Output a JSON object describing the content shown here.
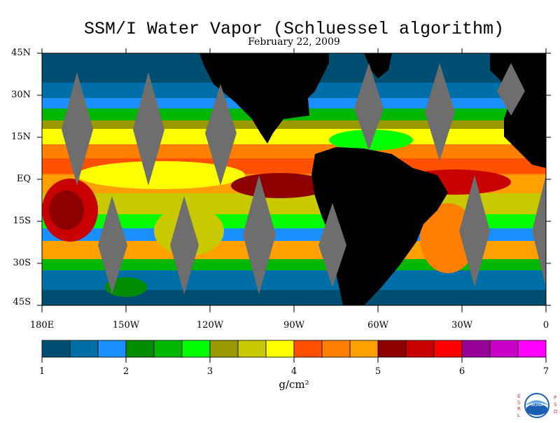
{
  "title": "SSM/I Water Vapor (Schluessel algorithm)",
  "date": "February 22, 2009",
  "lat_labels": [
    "45N",
    "30N",
    "15N",
    "EQ",
    "15S",
    "30S",
    "45S"
  ],
  "lon_labels": [
    "180E",
    "150W",
    "120W",
    "90W",
    "60W",
    "30W",
    "0"
  ],
  "colorbar": {
    "unit": "g/cm²",
    "ticks": [
      "1",
      "2",
      "3",
      "4",
      "5",
      "6",
      "7"
    ],
    "min": 1,
    "max": 7,
    "colors": [
      "#004f73",
      "#006fa8",
      "#1a8fff",
      "#008c00",
      "#00b800",
      "#00ff00",
      "#999900",
      "#c9c900",
      "#ffff00",
      "#ff5000",
      "#ff7f00",
      "#ffa000",
      "#8c0000",
      "#c80000",
      "#ff0000",
      "#990099",
      "#c800c8",
      "#ff00ff"
    ]
  },
  "logo": {
    "name": "NOAA",
    "left_letters": "ESRL",
    "right_letters": "PSD"
  },
  "colors": {
    "land": "#000000",
    "no_data_swath": "#6e6e6e",
    "frame": "#000000"
  }
}
